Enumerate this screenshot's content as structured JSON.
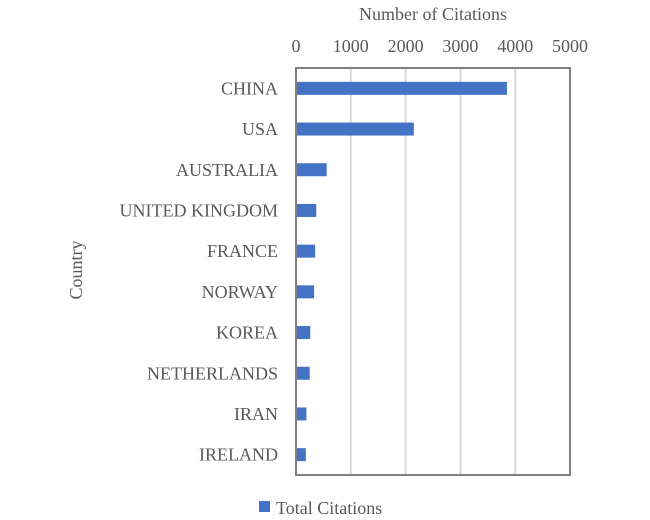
{
  "chart_data": {
    "type": "bar",
    "orientation": "horizontal",
    "xlabel": "Number of Citations",
    "ylabel": "Country",
    "xlim": [
      0,
      5000
    ],
    "xticks": [
      0,
      1000,
      2000,
      3000,
      4000,
      5000
    ],
    "x_axis_position": "top",
    "grid": true,
    "legend_position": "bottom",
    "categories": [
      "CHINA",
      "USA",
      "AUSTRALIA",
      "UNITED KINGDOM",
      "FRANCE",
      "NORWAY",
      "KOREA",
      "NETHERLANDS",
      "IRAN",
      "IRELAND"
    ],
    "series": [
      {
        "name": "Total Citations",
        "color": "#4472C4",
        "values": [
          3850,
          2150,
          560,
          370,
          350,
          330,
          260,
          250,
          190,
          180
        ]
      }
    ]
  }
}
